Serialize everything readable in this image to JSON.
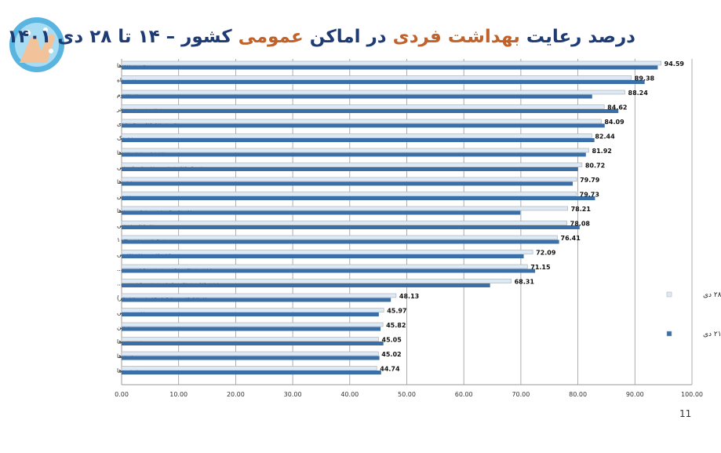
{
  "title_parts": [
    {
      "text": "درصد رعایت ",
      "color": "blue"
    },
    {
      "text": "بهداشت فردی ",
      "color": "orange"
    },
    {
      "text": "در اماکن ",
      "color": "blue"
    },
    {
      "text": "عمومی ",
      "color": "orange"
    },
    {
      "text": "کشور  – ۱۴ تا ۲۸ دی ۱۴۰۱",
      "color": "blue"
    }
  ],
  "page_number": "11",
  "chart_data": {
    "type": "bar",
    "orientation": "horizontal",
    "title": "درصد رعایت بهداشت فردی در اماکن عمومی کشور – ۱۴ تا ۲۸ دی ۱۴۰۱",
    "categories": [
      "فروشگاه ها",
      "دانشگاه",
      "استادیوم",
      "سالن سینما و تئاتر",
      "فروشگاه های زنجیره ای",
      "مهدکودک",
      "ادارات و سازمان ها",
      "استخرهای شنا و مراکز تفریحی آبی",
      "بانک ها",
      "مدارس",
      "مراکز تفریحی (شهربازی و ...) ها",
      "تالارهای پذیرایی",
      "پیشخوان و پلیس+۱۰",
      "هتل ها و مراکز اقامتی",
      "پایانه مسافر بری برون شهری(زمینی،...",
      "پایانه های مسافربری درون شهری(مترو،...",
      "کارگاه ها و صنایع کوچک (زیر ۲۵ نفر)",
      "مراکز ورزشی",
      "میانگین",
      "رستوران ها",
      "پاسازها",
      "نانوایی ها"
    ],
    "series": [
      {
        "name": "تا ۲۸ دی",
        "color": "#dce9f7",
        "values": [
          94.59,
          89.38,
          88.24,
          84.62,
          84.09,
          82.44,
          81.92,
          80.72,
          79.79,
          79.73,
          78.21,
          78.08,
          76.41,
          72.09,
          71.15,
          68.31,
          48.13,
          45.97,
          45.82,
          45.05,
          45.02,
          44.74
        ]
      },
      {
        "name": "تا ۲۱ دی",
        "color": "#3a6fa8",
        "values": [
          94.0,
          91.7,
          82.5,
          87.1,
          84.7,
          82.9,
          81.4,
          80.0,
          79.1,
          83.0,
          69.9,
          80.3,
          76.7,
          70.5,
          72.5,
          64.6,
          47.2,
          45.1,
          45.4,
          45.9,
          45.2,
          45.5
        ]
      }
    ],
    "data_labels_series": "تا ۲۸ دی",
    "xlim": [
      0,
      100
    ],
    "xticks": [
      "0.00",
      "10.00",
      "20.00",
      "30.00",
      "40.00",
      "50.00",
      "60.00",
      "70.00",
      "80.00",
      "90.00",
      "100.00"
    ],
    "grid": true,
    "legend": "right"
  }
}
